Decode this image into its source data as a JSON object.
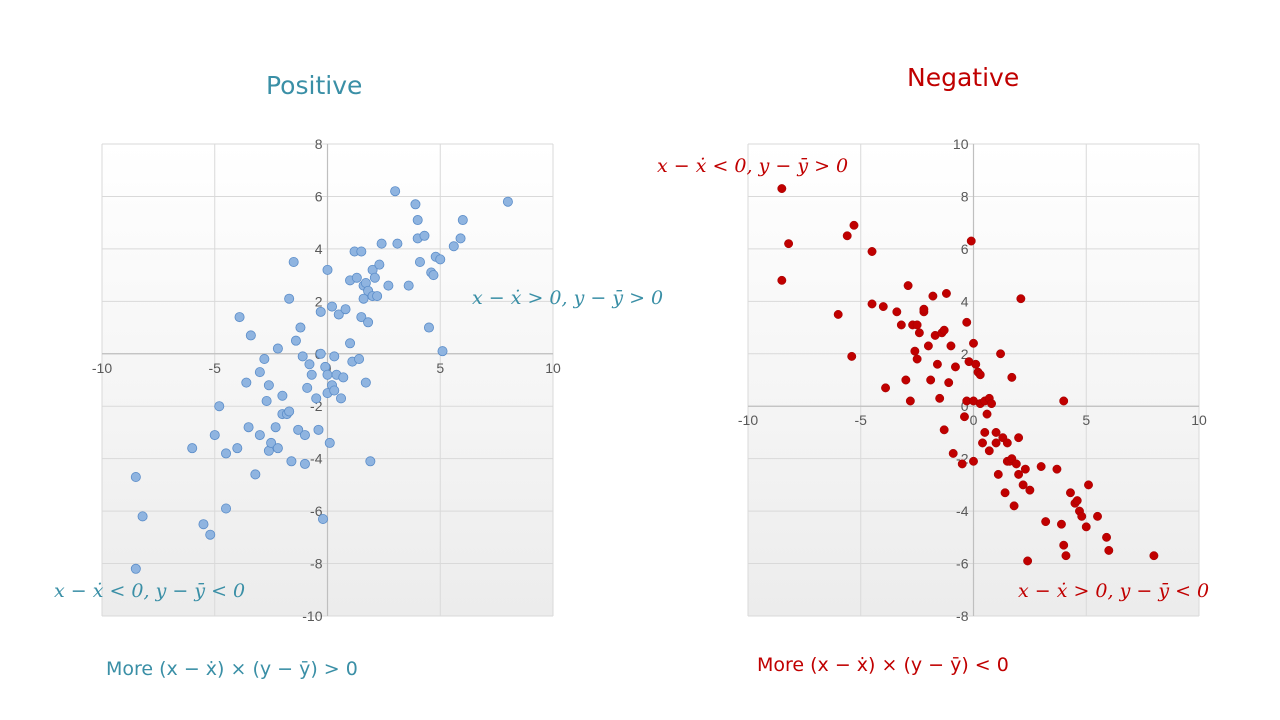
{
  "titles": {
    "positive": "Positive",
    "negative": "Negative"
  },
  "annotations": {
    "pos_upper": "x − ẋ > 0,  y − ȳ > 0",
    "pos_lower": "x − ẋ < 0,  y − ȳ < 0",
    "neg_upper": "x − ẋ < 0,  y − ȳ > 0",
    "neg_lower": "x − ẋ > 0,  y − ȳ < 0"
  },
  "footers": {
    "positive": "More (x − ẋ) × (y − ȳ)  > 0",
    "negative": "More (x − ẋ) × (y − ȳ) < 0"
  },
  "colors": {
    "positive": "#3a8fa6",
    "negative": "#c00000",
    "point_pos": "#8fb4e0",
    "point_neg": "#c00000"
  },
  "chart_data": [
    {
      "type": "scatter",
      "title": "Positive",
      "xlim": [
        -10,
        10
      ],
      "ylim": [
        -10,
        8
      ],
      "xticks": [
        -10,
        -5,
        0,
        5,
        10
      ],
      "yticks": [
        -10,
        -8,
        -6,
        -4,
        -2,
        0,
        2,
        4,
        6,
        8
      ],
      "grid": true,
      "x": [
        -8.5,
        -8.5,
        -8.2,
        -6,
        -5.5,
        -5.2,
        -5,
        -4.8,
        -4.5,
        -4.5,
        -4,
        -3.9,
        -3.6,
        -3.5,
        -3.4,
        -3.2,
        -3,
        -3,
        -2.8,
        -2.7,
        -2.6,
        -2.6,
        -2.5,
        -2.3,
        -2.2,
        -2.2,
        -2,
        -2,
        -1.8,
        -1.7,
        -1.7,
        -1.6,
        -1.5,
        -1.4,
        -1.3,
        -1.2,
        -1.1,
        -1,
        -1,
        -0.9,
        -0.8,
        -0.7,
        -0.5,
        -0.4,
        -0.3,
        -0.3,
        -0.2,
        -0.1,
        0,
        0,
        0,
        0.1,
        0.2,
        0.2,
        0.3,
        0.3,
        0.4,
        0.5,
        0.6,
        0.7,
        0.8,
        1,
        1,
        1.1,
        1.2,
        1.3,
        1.4,
        1.5,
        1.5,
        1.6,
        1.6,
        1.7,
        1.7,
        1.8,
        1.8,
        1.9,
        2,
        2,
        2.1,
        2.2,
        2.3,
        2.4,
        2.7,
        3,
        3.1,
        3.6,
        3.9,
        4,
        4,
        4.1,
        4.3,
        4.5,
        4.6,
        4.7,
        4.8,
        5,
        5.1,
        5.6,
        5.9,
        6,
        8
      ],
      "y": [
        -8.2,
        -4.7,
        -6.2,
        -3.6,
        -6.5,
        -6.9,
        -3.1,
        -2,
        -5.9,
        -3.8,
        -3.6,
        1.4,
        -1.1,
        -2.8,
        0.7,
        -4.6,
        -0.7,
        -3.1,
        -0.2,
        -1.8,
        -3.7,
        -1.2,
        -3.4,
        -2.8,
        0.2,
        -3.6,
        -1.6,
        -2.3,
        -2.3,
        -2.2,
        2.1,
        -4.1,
        3.5,
        0.5,
        -2.9,
        1.0,
        -0.1,
        -3.1,
        -4.2,
        -1.3,
        -0.4,
        -0.8,
        -1.7,
        -2.9,
        0,
        1.6,
        -6.3,
        -0.5,
        -1.5,
        3.2,
        -0.8,
        -3.4,
        -1.2,
        1.8,
        -1.4,
        -0.1,
        -0.8,
        1.5,
        -1.7,
        -0.9,
        1.7,
        0.4,
        2.8,
        -0.3,
        3.9,
        2.9,
        -0.2,
        1.4,
        3.9,
        2.1,
        2.6,
        -1.1,
        2.7,
        1.2,
        2.4,
        -4.1,
        3.2,
        2.2,
        2.9,
        2.2,
        3.4,
        4.2,
        2.6,
        6.2,
        4.2,
        2.6,
        5.7,
        4.4,
        5.1,
        3.5,
        4.5,
        1.0,
        3.1,
        3.0,
        3.7,
        3.6,
        0.1,
        4.1,
        4.4,
        5.1,
        5.8
      ]
    },
    {
      "type": "scatter",
      "title": "Negative",
      "xlim": [
        -10,
        10
      ],
      "ylim": [
        -8,
        10
      ],
      "xticks": [
        -10,
        -5,
        0,
        5,
        10
      ],
      "yticks": [
        -8,
        -6,
        -4,
        -2,
        0,
        2,
        4,
        6,
        8,
        10
      ],
      "grid": true,
      "x": [
        -8.5,
        -8.5,
        -8.2,
        -6,
        -5.6,
        -5.4,
        -5.3,
        -4.5,
        -4.5,
        -4,
        -3.9,
        -3.4,
        -3.2,
        -3,
        -2.9,
        -2.8,
        -2.7,
        -2.6,
        -2.5,
        -2.5,
        -2.4,
        -2.2,
        -2.2,
        -2.0,
        -1.9,
        -1.8,
        -1.7,
        -1.6,
        -1.5,
        -1.4,
        -1.3,
        -1.3,
        -1.2,
        -1.1,
        -1.0,
        -0.9,
        -0.8,
        -0.5,
        -0.4,
        -0.3,
        -0.3,
        -0.2,
        -0.1,
        0,
        0,
        0,
        0.1,
        0.2,
        0.3,
        0.3,
        0.4,
        0.5,
        0.5,
        0.6,
        0.7,
        0.7,
        0.8,
        1.0,
        1.0,
        1.1,
        1.2,
        1.3,
        1.4,
        1.5,
        1.5,
        1.6,
        1.7,
        1.7,
        1.8,
        1.9,
        2.0,
        2.0,
        2.1,
        2.2,
        2.3,
        2.4,
        2.5,
        3.0,
        3.2,
        3.7,
        3.9,
        4.0,
        4.0,
        4.1,
        4.3,
        4.5,
        4.6,
        4.7,
        4.8,
        5.0,
        5.1,
        5.5,
        5.9,
        6.0,
        8.0
      ],
      "y": [
        8.3,
        4.8,
        6.2,
        3.5,
        6.5,
        1.9,
        6.9,
        3.9,
        5.9,
        3.8,
        0.7,
        3.6,
        3.1,
        1.0,
        4.6,
        0.2,
        3.1,
        2.1,
        3.1,
        1.8,
        2.8,
        3.6,
        3.7,
        2.3,
        1.0,
        4.2,
        2.7,
        1.6,
        0.3,
        2.8,
        2.9,
        -0.9,
        4.3,
        0.9,
        2.3,
        -1.8,
        1.5,
        -2.2,
        -0.4,
        3.2,
        0.2,
        1.7,
        6.3,
        2.4,
        0.2,
        -2.1,
        1.6,
        1.3,
        1.2,
        0.1,
        -1.4,
        0.2,
        -1.0,
        -0.3,
        0.3,
        -1.7,
        0.1,
        -1.4,
        -1.0,
        -2.6,
        2.0,
        -1.2,
        -3.3,
        -2.1,
        -1.4,
        -2.1,
        -2.0,
        1.1,
        -3.8,
        -2.2,
        -1.2,
        -2.6,
        4.1,
        -3.0,
        -2.4,
        -5.9,
        -3.2,
        -2.3,
        -4.4,
        -2.4,
        -4.5,
        0.2,
        -5.3,
        -5.7,
        -3.3,
        -3.7,
        -3.6,
        -4.0,
        -4.2,
        -4.6,
        -3.0,
        -4.2,
        -5.0,
        -5.5,
        -5.7
      ]
    }
  ]
}
